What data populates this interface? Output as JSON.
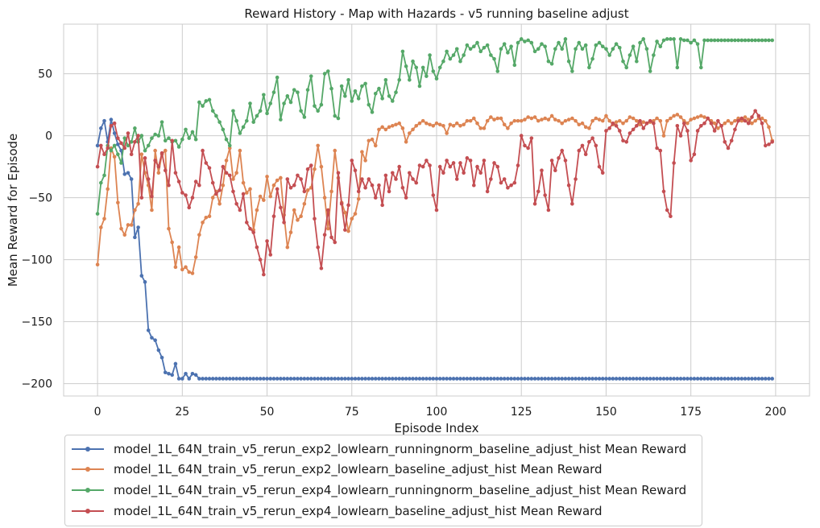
{
  "chart_data": {
    "type": "line",
    "title": "Reward History - Map with Hazards - v5 running baseline adjust",
    "xlabel": "Episode Index",
    "ylabel": "Mean Reward for Episode",
    "xlim": [
      -10,
      210
    ],
    "ylim": [
      -210,
      90
    ],
    "xticks": [
      0,
      25,
      50,
      75,
      100,
      125,
      150,
      175,
      200
    ],
    "yticks": [
      -200,
      -150,
      -100,
      -50,
      0,
      50
    ],
    "xtick_labels": [
      "0",
      "25",
      "50",
      "75",
      "100",
      "125",
      "150",
      "175",
      "200"
    ],
    "ytick_labels": [
      "−200",
      "−150",
      "−100",
      "−50",
      "0",
      "50"
    ],
    "grid": true,
    "legend_position": "below",
    "x": {
      "start": 0,
      "end": 199,
      "step": 1
    },
    "series": [
      {
        "name": "model_1L_64N_train_v5_rerun_exp2_lowlearn_runningnorm_baseline_adjust_hist Mean Reward",
        "color": "#4c72b0",
        "values": [
          -8,
          6,
          12,
          -5,
          13,
          2,
          -7,
          -12,
          -31,
          -30,
          -35,
          -82,
          -74,
          -113,
          -118,
          -157,
          -163,
          -165,
          -173,
          -179,
          -191,
          -192,
          -193,
          -184,
          -196,
          -196,
          -192,
          -196,
          -192,
          -193,
          -196,
          -196,
          -196,
          -196,
          -196,
          -196,
          -196,
          -196,
          -196,
          -196,
          -196,
          -196,
          -196,
          -196,
          -196,
          -196,
          -196,
          -196,
          -196,
          -196,
          -196,
          -196,
          -196,
          -196,
          -196,
          -196,
          -196,
          -196,
          -196,
          -196,
          -196,
          -196,
          -196,
          -196,
          -196,
          -196,
          -196,
          -196,
          -196,
          -196,
          -196,
          -196,
          -196,
          -196,
          -196,
          -196,
          -196,
          -196,
          -196,
          -196,
          -196,
          -196,
          -196,
          -196,
          -196,
          -196,
          -196,
          -196,
          -196,
          -196,
          -196,
          -196,
          -196,
          -196,
          -196,
          -196,
          -196,
          -196,
          -196,
          -196,
          -196,
          -196,
          -196,
          -196,
          -196,
          -196,
          -196,
          -196,
          -196,
          -196,
          -196,
          -196,
          -196,
          -196,
          -196,
          -196,
          -196,
          -196,
          -196,
          -196,
          -196,
          -196,
          -196,
          -196,
          -196,
          -196,
          -196,
          -196,
          -196,
          -196,
          -196,
          -196,
          -196,
          -196,
          -196,
          -196,
          -196,
          -196,
          -196,
          -196,
          -196,
          -196,
          -196,
          -196,
          -196,
          -196,
          -196,
          -196,
          -196,
          -196,
          -196,
          -196,
          -196,
          -196,
          -196,
          -196,
          -196,
          -196,
          -196,
          -196,
          -196,
          -196,
          -196,
          -196,
          -196,
          -196,
          -196,
          -196,
          -196,
          -196,
          -196,
          -196,
          -196,
          -196,
          -196,
          -196,
          -196,
          -196,
          -196,
          -196,
          -196,
          -196,
          -196,
          -196,
          -196,
          -196,
          -196,
          -196,
          -196,
          -196,
          -196,
          -196,
          -196,
          -196,
          -196,
          -196,
          -196,
          -196,
          -196,
          -196
        ]
      },
      {
        "name": "model_1L_64N_train_v5_rerun_exp2_lowlearn_baseline_adjust_hist Mean Reward",
        "color": "#dd8452",
        "values": [
          -104,
          -74,
          -67,
          -43,
          -10,
          -17,
          -54,
          -75,
          -80,
          -72,
          -72,
          -60,
          -55,
          -15,
          -30,
          -40,
          -60,
          -12,
          -30,
          -15,
          -12,
          -75,
          -86,
          -106,
          -90,
          -108,
          -106,
          -110,
          -111,
          -98,
          -80,
          -70,
          -66,
          -65,
          -50,
          -45,
          -55,
          -40,
          -20,
          -10,
          -35,
          -30,
          -12,
          -38,
          -46,
          -43,
          -76,
          -60,
          -49,
          -52,
          -33,
          -49,
          -40,
          -36,
          -34,
          -64,
          -90,
          -78,
          -60,
          -68,
          -65,
          -55,
          -44,
          -42,
          -27,
          -8,
          -25,
          -50,
          -75,
          -45,
          -12,
          -34,
          -54,
          -62,
          -77,
          -67,
          -63,
          -51,
          -13,
          -20,
          -4,
          -3,
          -8,
          5,
          7,
          5,
          7,
          8,
          9,
          10,
          6,
          -5,
          2,
          5,
          8,
          10,
          12,
          10,
          9,
          8,
          10,
          9,
          8,
          2,
          9,
          8,
          10,
          8,
          9,
          12,
          12,
          14,
          10,
          6,
          6,
          12,
          15,
          13,
          14,
          14,
          9,
          6,
          10,
          12,
          12,
          12,
          13,
          15,
          14,
          15,
          12,
          13,
          14,
          13,
          16,
          13,
          12,
          10,
          12,
          13,
          14,
          12,
          9,
          10,
          7,
          6,
          12,
          14,
          13,
          12,
          16,
          12,
          9,
          11,
          12,
          10,
          12,
          15,
          14,
          12,
          9,
          11,
          10,
          11,
          12,
          14,
          12,
          0,
          12,
          14,
          16,
          17,
          15,
          12,
          10,
          13,
          14,
          15,
          16,
          15,
          14,
          12,
          10,
          6,
          8,
          10,
          12,
          10,
          12,
          14,
          12,
          15,
          13,
          10,
          12,
          14,
          14,
          12,
          7,
          -4
        ]
      },
      {
        "name": "model_1L_64N_train_v5_rerun_exp4_lowlearn_runningnorm_baseline_adjust_hist Mean Reward",
        "color": "#55a868",
        "values": [
          -63,
          -38,
          -32,
          -8,
          -12,
          -8,
          -15,
          -22,
          -2,
          -8,
          -5,
          6,
          -5,
          0,
          -12,
          -8,
          -2,
          1,
          0,
          11,
          -4,
          -2,
          -5,
          -4,
          -9,
          -3,
          5,
          -2,
          3,
          -3,
          27,
          24,
          28,
          29,
          20,
          16,
          11,
          5,
          -3,
          -8,
          20,
          12,
          2,
          7,
          12,
          26,
          11,
          16,
          20,
          33,
          18,
          26,
          35,
          47,
          13,
          26,
          32,
          27,
          37,
          35,
          20,
          15,
          37,
          48,
          24,
          20,
          25,
          50,
          52,
          38,
          16,
          14,
          40,
          32,
          45,
          28,
          36,
          30,
          40,
          42,
          25,
          19,
          34,
          38,
          30,
          45,
          32,
          28,
          35,
          45,
          68,
          56,
          45,
          60,
          55,
          40,
          55,
          48,
          65,
          52,
          46,
          55,
          60,
          68,
          62,
          65,
          70,
          60,
          65,
          73,
          70,
          72,
          75,
          68,
          71,
          73,
          65,
          62,
          52,
          70,
          74,
          67,
          72,
          57,
          75,
          78,
          76,
          77,
          75,
          68,
          70,
          74,
          72,
          60,
          58,
          70,
          75,
          70,
          78,
          60,
          52,
          70,
          75,
          70,
          73,
          55,
          62,
          73,
          75,
          72,
          70,
          65,
          70,
          74,
          71,
          60,
          55,
          65,
          72,
          60,
          75,
          78,
          70,
          52,
          65,
          76,
          72,
          77,
          78,
          78,
          78,
          55,
          78,
          77,
          77,
          75,
          77,
          74,
          55,
          77,
          77,
          77,
          77,
          77,
          77,
          77,
          77,
          77,
          77,
          77,
          77,
          77,
          77,
          77,
          77,
          77,
          77,
          77,
          77,
          77
        ]
      },
      {
        "name": "model_1L_64N_train_v5_rerun_exp4_lowlearn_baseline_adjust_hist Mean Reward",
        "color": "#c44e52",
        "values": [
          -25,
          -8,
          -15,
          -10,
          8,
          10,
          -2,
          -6,
          -10,
          2,
          -15,
          -5,
          0,
          -50,
          -18,
          -35,
          -49,
          -20,
          -25,
          -14,
          -28,
          -40,
          -4,
          -30,
          -37,
          -46,
          -48,
          -58,
          -50,
          -37,
          -40,
          -12,
          -22,
          -26,
          -38,
          -47,
          -44,
          -25,
          -30,
          -32,
          -45,
          -55,
          -60,
          -47,
          -70,
          -75,
          -78,
          -90,
          -100,
          -112,
          -85,
          -96,
          -65,
          -43,
          -58,
          -70,
          -35,
          -42,
          -40,
          -32,
          -35,
          -45,
          -27,
          -24,
          -67,
          -90,
          -107,
          -80,
          -60,
          -82,
          -86,
          -30,
          -55,
          -76,
          -56,
          -20,
          -28,
          -45,
          -35,
          -42,
          -35,
          -40,
          -50,
          -40,
          -56,
          -32,
          -45,
          -30,
          -35,
          -25,
          -42,
          -50,
          -30,
          -35,
          -38,
          -24,
          -25,
          -20,
          -24,
          -48,
          -60,
          -25,
          -30,
          -20,
          -25,
          -22,
          -35,
          -22,
          -30,
          -18,
          -20,
          -40,
          -25,
          -30,
          -20,
          -45,
          -35,
          -22,
          -25,
          -38,
          -35,
          -42,
          -40,
          -38,
          -24,
          0,
          -8,
          -10,
          -2,
          -55,
          -45,
          -28,
          -48,
          -60,
          -20,
          -28,
          -18,
          -12,
          -20,
          -40,
          -55,
          -35,
          -12,
          -8,
          -15,
          -5,
          -2,
          -8,
          -25,
          -30,
          4,
          6,
          10,
          8,
          4,
          -4,
          -5,
          2,
          5,
          8,
          12,
          6,
          10,
          12,
          10,
          -10,
          -12,
          -45,
          -60,
          -65,
          -22,
          8,
          0,
          10,
          4,
          -20,
          -15,
          4,
          8,
          10,
          14,
          10,
          4,
          12,
          8,
          -5,
          -10,
          -4,
          5,
          12,
          14,
          12,
          10,
          15,
          20,
          16,
          10,
          -8,
          -7,
          -5
        ]
      }
    ]
  }
}
